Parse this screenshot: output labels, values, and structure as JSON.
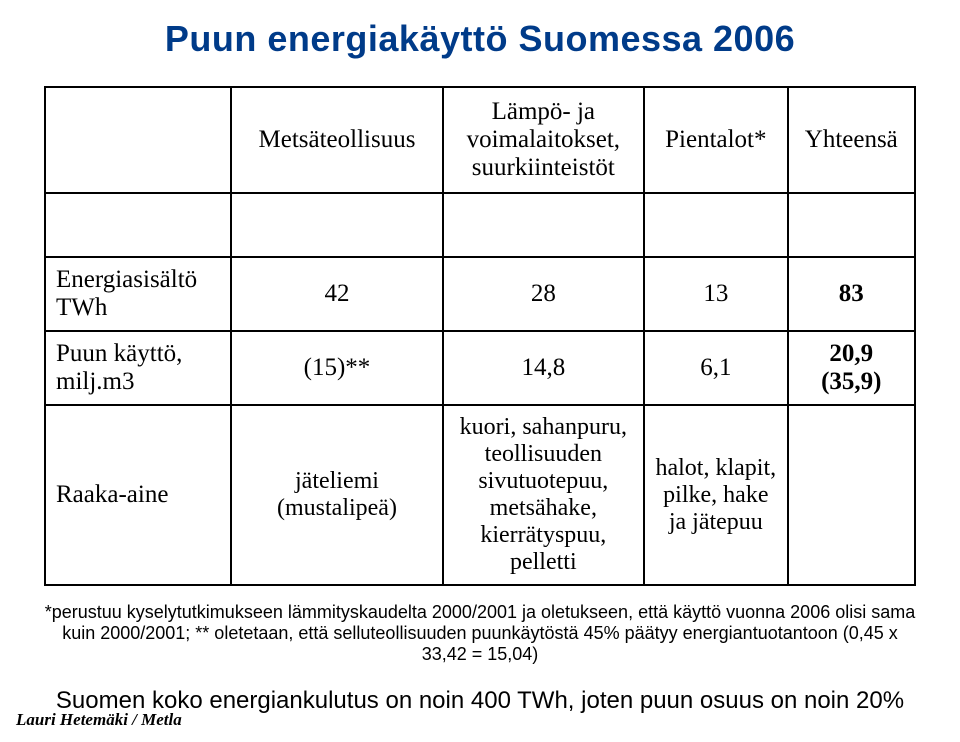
{
  "title": {
    "text": "Puun energiakäyttö Suomessa 2006",
    "color": "#003b89",
    "fontsize": 36
  },
  "table": {
    "border_color": "#000000",
    "header": {
      "c1": "",
      "c2": "Metsäteollisuus",
      "c3": "Lämpö- ja voimalaitokset, suurkiinteistöt",
      "c4": "Pientalot*",
      "c5": "Yhteensä"
    },
    "rows": [
      {
        "label": "Energiasisältö TWh",
        "c2": "42",
        "c3": "28",
        "c4": "13",
        "c5": "83"
      },
      {
        "label": "Puun käyttö, milj.m3",
        "c2": "(15)**",
        "c3": "14,8",
        "c4": "6,1",
        "c5": "20,9 (35,9)"
      },
      {
        "label": "Raaka-aine",
        "c2": "jäteliemi (mustalipeä)",
        "c3": "kuori, sahanpuru, teollisuuden sivutuotepuu, metsähake, kierrätyspuu, pelletti",
        "c4": "halot, klapit, pilke, hake ja jätepuu",
        "c5": ""
      }
    ]
  },
  "footnote": {
    "text": "*perustuu kyselytutkimukseen lämmityskaudelta 2000/2001 ja oletukseen, että käyttö vuonna 2006 olisi sama kuin 2000/2001; ** oletetaan, että selluteollisuuden puunkäytöstä 45% päätyy energiantuotantoon (0,45 x 33,42 = 15,04)",
    "fontsize": 18
  },
  "conclusion": {
    "text": "Suomen koko energiankulutus on noin 400 TWh, joten puun osuus on noin 20%",
    "fontsize": 24
  },
  "attribution": {
    "text": "Lauri Hetemäki / Metla"
  }
}
